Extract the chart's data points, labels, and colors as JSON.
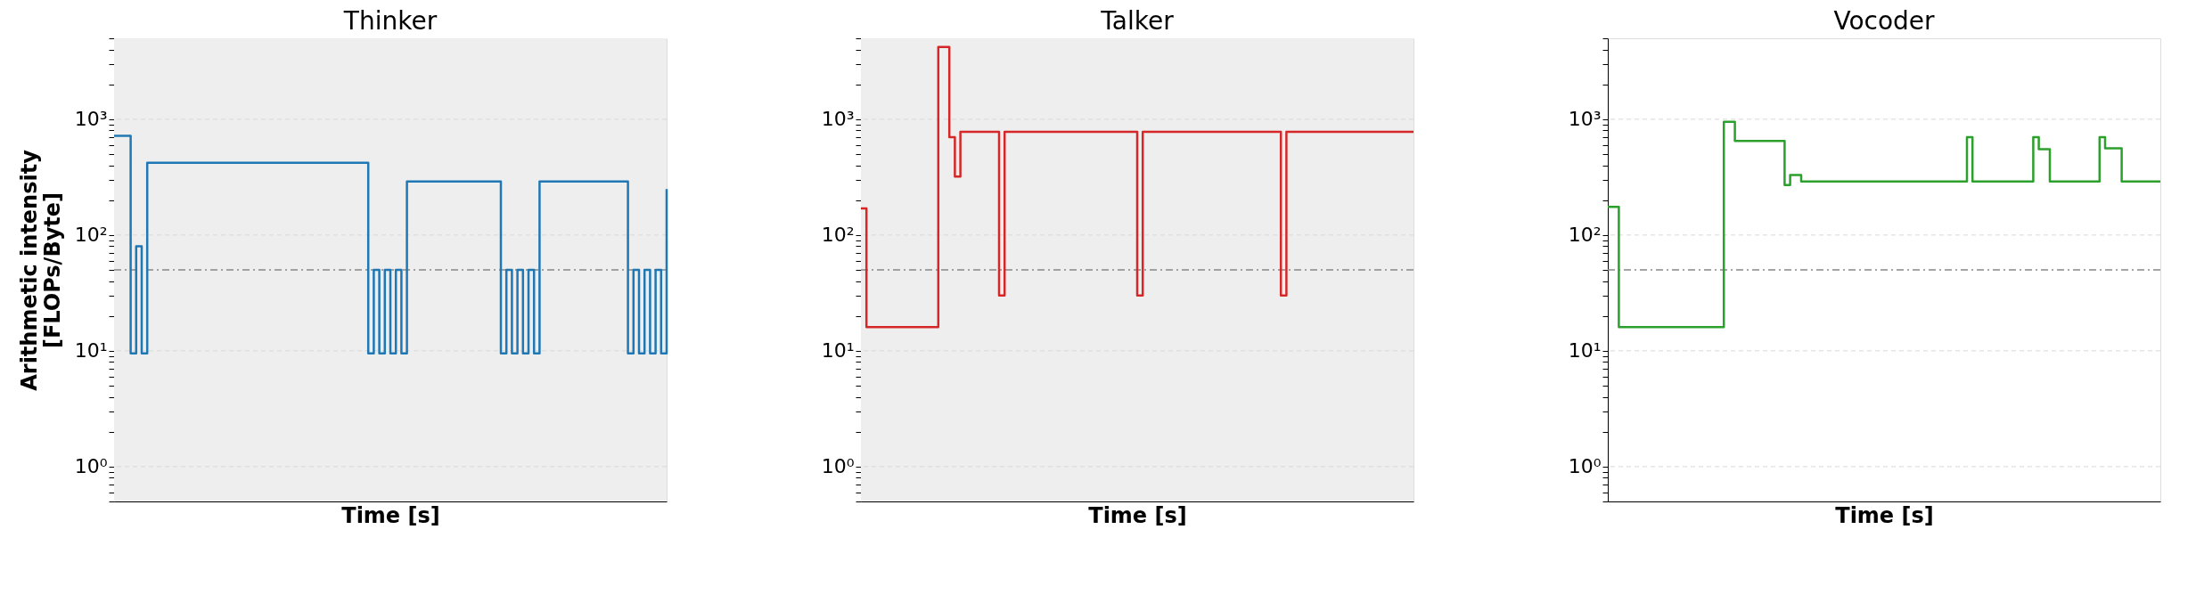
{
  "chart_data": [
    {
      "type": "step",
      "title": "Thinker",
      "xlabel": "Time [s]",
      "ylabel": "Arithmetic intensity\n[FLOPs/Byte]",
      "log": "y",
      "grid": "y",
      "categories": [
        null,
        null,
        null,
        null,
        null,
        null,
        null,
        null,
        null,
        null,
        null,
        null,
        null,
        null,
        null,
        null,
        null,
        null,
        null,
        null,
        null,
        null,
        null,
        null,
        null,
        null,
        null,
        null,
        null,
        null,
        null,
        null,
        null,
        null,
        null,
        null,
        null,
        null,
        null,
        null,
        null,
        null,
        null,
        null,
        null,
        null,
        null,
        null,
        null,
        null,
        null,
        null,
        null,
        null,
        null,
        null,
        null,
        null,
        null,
        null,
        null,
        null,
        null,
        null,
        null,
        null,
        null,
        null,
        null,
        null,
        null,
        null,
        null,
        null,
        null,
        null,
        null,
        null,
        null,
        null,
        null,
        null,
        null,
        null,
        null,
        null,
        null,
        null,
        null,
        null,
        null,
        null,
        null,
        null,
        null,
        null,
        null,
        null,
        null,
        null,
        null
      ],
      "series": [
        {
          "color": "#1f77b4",
          "values": [
            720,
            720,
            720,
            9.5,
            80,
            9.5,
            420,
            420,
            420,
            420,
            420,
            420,
            420,
            420,
            420,
            420,
            420,
            420,
            420,
            420,
            420,
            420,
            420,
            420,
            420,
            420,
            420,
            420,
            420,
            420,
            420,
            420,
            420,
            420,
            420,
            420,
            420,
            420,
            420,
            420,
            420,
            420,
            420,
            420,
            420,
            420,
            9.5,
            50,
            9.5,
            50,
            9.5,
            50,
            9.5,
            290,
            290,
            290,
            290,
            290,
            290,
            290,
            290,
            290,
            290,
            290,
            290,
            290,
            290,
            290,
            290,
            290,
            9.5,
            50,
            9.5,
            50,
            9.5,
            50,
            9.5,
            290,
            290,
            290,
            290,
            290,
            290,
            290,
            290,
            290,
            290,
            290,
            290,
            290,
            290,
            290,
            290,
            9.5,
            50,
            9.5,
            50,
            9.5,
            50,
            9.5,
            250
          ]
        }
      ],
      "ylim": [
        0.5,
        5000
      ],
      "yticks": [
        {
          "value": 0.5,
          "label": null
        },
        {
          "value": 0.6,
          "label": null
        },
        {
          "value": 0.7,
          "label": null
        },
        {
          "value": 0.8,
          "label": null
        },
        {
          "value": 0.9,
          "label": null
        },
        {
          "value": 1,
          "label": "10⁰"
        },
        {
          "value": 2,
          "label": null
        },
        {
          "value": 3,
          "label": null
        },
        {
          "value": 4,
          "label": null
        },
        {
          "value": 5,
          "label": null
        },
        {
          "value": 6,
          "label": null
        },
        {
          "value": 7,
          "label": null
        },
        {
          "value": 8,
          "label": null
        },
        {
          "value": 9,
          "label": null
        },
        {
          "value": 10,
          "label": "10¹"
        },
        {
          "value": 20,
          "label": null
        },
        {
          "value": 30,
          "label": null
        },
        {
          "value": 40,
          "label": null
        },
        {
          "value": 50,
          "label": null
        },
        {
          "value": 60,
          "label": null
        },
        {
          "value": 70,
          "label": null
        },
        {
          "value": 80,
          "label": null
        },
        {
          "value": 90,
          "label": null
        },
        {
          "value": 100,
          "label": "10²"
        },
        {
          "value": 200,
          "label": null
        },
        {
          "value": 300,
          "label": null
        },
        {
          "value": 400,
          "label": null
        },
        {
          "value": 500,
          "label": null
        },
        {
          "value": 600,
          "label": null
        },
        {
          "value": 700,
          "label": null
        },
        {
          "value": 800,
          "label": null
        },
        {
          "value": 900,
          "label": null
        },
        {
          "value": 1000,
          "label": "10³"
        },
        {
          "value": 2000,
          "label": null
        },
        {
          "value": 3000,
          "label": null
        },
        {
          "value": 4000,
          "label": null
        },
        {
          "value": 5000,
          "label": null
        }
      ],
      "bands": [
        {
          "axis": "y",
          "from": 0.5,
          "to": 5000,
          "color": "#eeeeee"
        }
      ],
      "ref_lines": [
        {
          "axis": "y",
          "value": 50,
          "color": "#888888",
          "line_style": "dashed"
        }
      ]
    },
    {
      "type": "step",
      "title": "Talker",
      "xlabel": "Time [s]",
      "log": "y",
      "grid": "y",
      "categories": [
        null,
        null,
        null,
        null,
        null,
        null,
        null,
        null,
        null,
        null,
        null,
        null,
        null,
        null,
        null,
        null,
        null,
        null,
        null,
        null,
        null,
        null,
        null,
        null,
        null,
        null,
        null,
        null,
        null,
        null,
        null,
        null,
        null,
        null,
        null,
        null,
        null,
        null,
        null,
        null,
        null,
        null,
        null,
        null,
        null,
        null,
        null,
        null,
        null,
        null,
        null,
        null,
        null,
        null,
        null,
        null,
        null,
        null,
        null,
        null,
        null,
        null,
        null,
        null,
        null,
        null,
        null,
        null,
        null,
        null,
        null,
        null,
        null,
        null,
        null,
        null,
        null,
        null,
        null,
        null,
        null,
        null,
        null,
        null,
        null,
        null,
        null,
        null,
        null,
        null,
        null,
        null,
        null,
        null,
        null,
        null,
        null,
        null,
        null,
        null,
        null
      ],
      "series": [
        {
          "color": "#d62728",
          "values": [
            170,
            16,
            16,
            16,
            16,
            16,
            16,
            16,
            16,
            16,
            16,
            16,
            16,
            16,
            4200,
            4200,
            700,
            320,
            780,
            780,
            780,
            780,
            780,
            780,
            780,
            30,
            780,
            780,
            780,
            780,
            780,
            780,
            780,
            780,
            780,
            780,
            780,
            780,
            780,
            780,
            780,
            780,
            780,
            780,
            780,
            780,
            780,
            780,
            780,
            780,
            30,
            780,
            780,
            780,
            780,
            780,
            780,
            780,
            780,
            780,
            780,
            780,
            780,
            780,
            780,
            780,
            780,
            780,
            780,
            780,
            780,
            780,
            780,
            780,
            780,
            780,
            30,
            780,
            780,
            780,
            780,
            780,
            780,
            780,
            780,
            780,
            780,
            780,
            780,
            780,
            780,
            780,
            780,
            780,
            780,
            780,
            780,
            780,
            780,
            780,
            780
          ]
        }
      ],
      "ylim": [
        0.5,
        5000
      ],
      "yticks": [
        {
          "value": 0.5,
          "label": null
        },
        {
          "value": 0.6,
          "label": null
        },
        {
          "value": 0.7,
          "label": null
        },
        {
          "value": 0.8,
          "label": null
        },
        {
          "value": 0.9,
          "label": null
        },
        {
          "value": 1,
          "label": "10⁰"
        },
        {
          "value": 2,
          "label": null
        },
        {
          "value": 3,
          "label": null
        },
        {
          "value": 4,
          "label": null
        },
        {
          "value": 5,
          "label": null
        },
        {
          "value": 6,
          "label": null
        },
        {
          "value": 7,
          "label": null
        },
        {
          "value": 8,
          "label": null
        },
        {
          "value": 9,
          "label": null
        },
        {
          "value": 10,
          "label": "10¹"
        },
        {
          "value": 20,
          "label": null
        },
        {
          "value": 30,
          "label": null
        },
        {
          "value": 40,
          "label": null
        },
        {
          "value": 50,
          "label": null
        },
        {
          "value": 60,
          "label": null
        },
        {
          "value": 70,
          "label": null
        },
        {
          "value": 80,
          "label": null
        },
        {
          "value": 90,
          "label": null
        },
        {
          "value": 100,
          "label": "10²"
        },
        {
          "value": 200,
          "label": null
        },
        {
          "value": 300,
          "label": null
        },
        {
          "value": 400,
          "label": null
        },
        {
          "value": 500,
          "label": null
        },
        {
          "value": 600,
          "label": null
        },
        {
          "value": 700,
          "label": null
        },
        {
          "value": 800,
          "label": null
        },
        {
          "value": 900,
          "label": null
        },
        {
          "value": 1000,
          "label": "10³"
        },
        {
          "value": 2000,
          "label": null
        },
        {
          "value": 3000,
          "label": null
        },
        {
          "value": 4000,
          "label": null
        },
        {
          "value": 5000,
          "label": null
        }
      ],
      "bands": [
        {
          "axis": "y",
          "from": 0.5,
          "to": 5000,
          "color": "#eeeeee"
        }
      ],
      "ref_lines": [
        {
          "axis": "y",
          "value": 50,
          "color": "#888888",
          "line_style": "dashed"
        }
      ]
    },
    {
      "type": "step",
      "title": "Vocoder",
      "xlabel": "Time [s]",
      "log": "y",
      "grid": "y",
      "categories": [
        null,
        null,
        null,
        null,
        null,
        null,
        null,
        null,
        null,
        null,
        null,
        null,
        null,
        null,
        null,
        null,
        null,
        null,
        null,
        null,
        null,
        null,
        null,
        null,
        null,
        null,
        null,
        null,
        null,
        null,
        null,
        null,
        null,
        null,
        null,
        null,
        null,
        null,
        null,
        null,
        null,
        null,
        null,
        null,
        null,
        null,
        null,
        null,
        null,
        null,
        null,
        null,
        null,
        null,
        null,
        null,
        null,
        null,
        null,
        null,
        null,
        null,
        null,
        null,
        null,
        null,
        null,
        null,
        null,
        null,
        null,
        null,
        null,
        null,
        null,
        null,
        null,
        null,
        null,
        null,
        null,
        null,
        null,
        null,
        null,
        null,
        null,
        null,
        null,
        null,
        null,
        null,
        null,
        null,
        null,
        null,
        null,
        null,
        null,
        null,
        null
      ],
      "series": [
        {
          "color": "#2ca02c",
          "values": [
            175,
            175,
            16,
            16,
            16,
            16,
            16,
            16,
            16,
            16,
            16,
            16,
            16,
            16,
            16,
            16,
            16,
            16,
            16,
            16,
            16,
            950,
            950,
            650,
            650,
            650,
            650,
            650,
            650,
            650,
            650,
            650,
            270,
            330,
            330,
            290,
            290,
            290,
            290,
            290,
            290,
            290,
            290,
            290,
            290,
            290,
            290,
            290,
            290,
            290,
            290,
            290,
            290,
            290,
            290,
            290,
            290,
            290,
            290,
            290,
            290,
            290,
            290,
            290,
            290,
            700,
            290,
            290,
            290,
            290,
            290,
            290,
            290,
            290,
            290,
            290,
            290,
            700,
            550,
            550,
            290,
            290,
            290,
            290,
            290,
            290,
            290,
            290,
            290,
            700,
            560,
            560,
            560,
            290,
            290,
            290,
            290,
            290,
            290,
            290,
            290
          ]
        }
      ],
      "ylim": [
        0.5,
        5000
      ],
      "yticks": [
        {
          "value": 0.5,
          "label": null
        },
        {
          "value": 0.6,
          "label": null
        },
        {
          "value": 0.7,
          "label": null
        },
        {
          "value": 0.8,
          "label": null
        },
        {
          "value": 0.9,
          "label": null
        },
        {
          "value": 1,
          "label": "10⁰"
        },
        {
          "value": 2,
          "label": null
        },
        {
          "value": 3,
          "label": null
        },
        {
          "value": 4,
          "label": null
        },
        {
          "value": 5,
          "label": null
        },
        {
          "value": 6,
          "label": null
        },
        {
          "value": 7,
          "label": null
        },
        {
          "value": 8,
          "label": null
        },
        {
          "value": 9,
          "label": null
        },
        {
          "value": 10,
          "label": "10¹"
        },
        {
          "value": 20,
          "label": null
        },
        {
          "value": 30,
          "label": null
        },
        {
          "value": 40,
          "label": null
        },
        {
          "value": 50,
          "label": null
        },
        {
          "value": 60,
          "label": null
        },
        {
          "value": 70,
          "label": null
        },
        {
          "value": 80,
          "label": null
        },
        {
          "value": 90,
          "label": null
        },
        {
          "value": 100,
          "label": "10²"
        },
        {
          "value": 200,
          "label": null
        },
        {
          "value": 300,
          "label": null
        },
        {
          "value": 400,
          "label": null
        },
        {
          "value": 500,
          "label": null
        },
        {
          "value": 600,
          "label": null
        },
        {
          "value": 700,
          "label": null
        },
        {
          "value": 800,
          "label": null
        },
        {
          "value": 900,
          "label": null
        },
        {
          "value": 1000,
          "label": "10³"
        },
        {
          "value": 2000,
          "label": null
        },
        {
          "value": 3000,
          "label": null
        },
        {
          "value": 4000,
          "label": null
        },
        {
          "value": 5000,
          "label": null
        }
      ],
      "ref_lines": [
        {
          "axis": "y",
          "value": 50,
          "color": "#888888",
          "line_style": "dashed"
        }
      ]
    }
  ]
}
